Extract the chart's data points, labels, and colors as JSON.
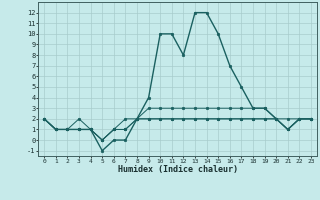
{
  "xlabel": "Humidex (Indice chaleur)",
  "background_color": "#c6eaea",
  "grid_color": "#a8cccc",
  "line_color": "#1a6060",
  "xlim": [
    -0.5,
    23.5
  ],
  "ylim": [
    -1.5,
    13.0
  ],
  "xtick_labels": [
    "0",
    "1",
    "2",
    "3",
    "4",
    "5",
    "6",
    "7",
    "8",
    "9",
    "10",
    "11",
    "12",
    "13",
    "14",
    "15",
    "16",
    "17",
    "18",
    "19",
    "20",
    "21",
    "22",
    "23"
  ],
  "ytick_labels": [
    "-1",
    "0",
    "1",
    "2",
    "3",
    "4",
    "5",
    "6",
    "7",
    "8",
    "9",
    "10",
    "11",
    "12"
  ],
  "ytick_vals": [
    -1,
    0,
    1,
    2,
    3,
    4,
    5,
    6,
    7,
    8,
    9,
    10,
    11,
    12
  ],
  "series": [
    [
      2,
      1,
      1,
      1,
      1,
      -1,
      0,
      0,
      2,
      4,
      10,
      10,
      8,
      12,
      12,
      10,
      7,
      5,
      3,
      3,
      2,
      1,
      2,
      2
    ],
    [
      2,
      1,
      1,
      2,
      1,
      0,
      1,
      2,
      2,
      3,
      3,
      3,
      3,
      3,
      3,
      3,
      3,
      3,
      3,
      3,
      2,
      2,
      2,
      2
    ],
    [
      2,
      1,
      1,
      1,
      1,
      0,
      1,
      1,
      2,
      2,
      2,
      2,
      2,
      2,
      2,
      2,
      2,
      2,
      2,
      2,
      2,
      1,
      2,
      2
    ],
    [
      2,
      1,
      1,
      1,
      1,
      0,
      1,
      1,
      2,
      2,
      2,
      2,
      2,
      2,
      2,
      2,
      2,
      2,
      2,
      2,
      2,
      1,
      2,
      2
    ]
  ]
}
